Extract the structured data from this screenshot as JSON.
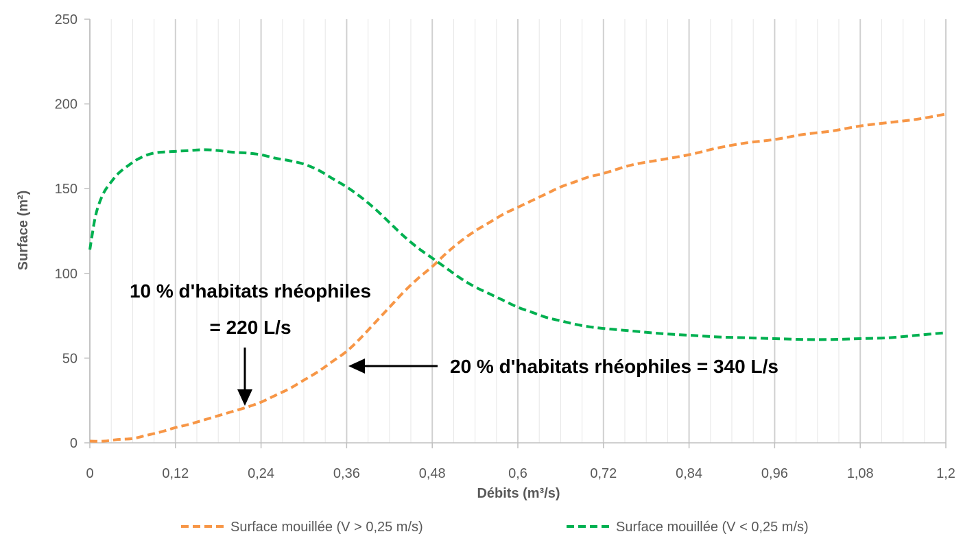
{
  "chart_data": {
    "type": "line",
    "xlabel": "Débits (m³/s)",
    "ylabel": "Surface (m²)",
    "xlim": [
      0,
      1.2
    ],
    "ylim": [
      0,
      250
    ],
    "x_ticks": [
      "0",
      "0,12",
      "0,24",
      "0,36",
      "0,48",
      "0,6",
      "0,72",
      "0,84",
      "0,96",
      "1,08",
      "1,2"
    ],
    "y_ticks": [
      "0",
      "50",
      "100",
      "150",
      "200",
      "250"
    ],
    "grid": "vertical",
    "legend_position": "bottom",
    "series": [
      {
        "name": "Surface mouillée (V > 0,25 m/s)",
        "color": "#F79646",
        "dash": "dashed",
        "points": [
          [
            0,
            1
          ],
          [
            0.02,
            1
          ],
          [
            0.04,
            2
          ],
          [
            0.06,
            2.5
          ],
          [
            0.08,
            4.5
          ],
          [
            0.1,
            6.5
          ],
          [
            0.12,
            9
          ],
          [
            0.14,
            11
          ],
          [
            0.16,
            13.5
          ],
          [
            0.18,
            16
          ],
          [
            0.2,
            18.5
          ],
          [
            0.22,
            21
          ],
          [
            0.24,
            24
          ],
          [
            0.26,
            28
          ],
          [
            0.28,
            32
          ],
          [
            0.3,
            37
          ],
          [
            0.32,
            42
          ],
          [
            0.34,
            48
          ],
          [
            0.36,
            54
          ],
          [
            0.38,
            62
          ],
          [
            0.4,
            71
          ],
          [
            0.42,
            80
          ],
          [
            0.44,
            89
          ],
          [
            0.46,
            97
          ],
          [
            0.48,
            104
          ],
          [
            0.5,
            112
          ],
          [
            0.52,
            119
          ],
          [
            0.54,
            125
          ],
          [
            0.56,
            130
          ],
          [
            0.58,
            135
          ],
          [
            0.6,
            139
          ],
          [
            0.62,
            143
          ],
          [
            0.64,
            147
          ],
          [
            0.66,
            151
          ],
          [
            0.68,
            154
          ],
          [
            0.7,
            157
          ],
          [
            0.72,
            159
          ],
          [
            0.76,
            164
          ],
          [
            0.8,
            167
          ],
          [
            0.84,
            170
          ],
          [
            0.88,
            174
          ],
          [
            0.92,
            177
          ],
          [
            0.96,
            179
          ],
          [
            1.0,
            182
          ],
          [
            1.04,
            184
          ],
          [
            1.08,
            187
          ],
          [
            1.12,
            189
          ],
          [
            1.16,
            191
          ],
          [
            1.2,
            194
          ]
        ]
      },
      {
        "name": "Surface mouillée (V < 0,25 m/s)",
        "color": "#00B050",
        "dash": "dashed",
        "points": [
          [
            0,
            114
          ],
          [
            0.003,
            122
          ],
          [
            0.007,
            132
          ],
          [
            0.012,
            140
          ],
          [
            0.02,
            148
          ],
          [
            0.03,
            154
          ],
          [
            0.04,
            159
          ],
          [
            0.055,
            164
          ],
          [
            0.07,
            168
          ],
          [
            0.09,
            171
          ],
          [
            0.12,
            172
          ],
          [
            0.14,
            172.5
          ],
          [
            0.16,
            173
          ],
          [
            0.18,
            172.5
          ],
          [
            0.2,
            171.5
          ],
          [
            0.22,
            171
          ],
          [
            0.24,
            170
          ],
          [
            0.26,
            168
          ],
          [
            0.28,
            166.5
          ],
          [
            0.3,
            164.5
          ],
          [
            0.32,
            161
          ],
          [
            0.34,
            156
          ],
          [
            0.36,
            151
          ],
          [
            0.38,
            145
          ],
          [
            0.4,
            138
          ],
          [
            0.42,
            130
          ],
          [
            0.44,
            122
          ],
          [
            0.46,
            115
          ],
          [
            0.48,
            109
          ],
          [
            0.5,
            103
          ],
          [
            0.52,
            97
          ],
          [
            0.54,
            92
          ],
          [
            0.56,
            88
          ],
          [
            0.58,
            84
          ],
          [
            0.6,
            80
          ],
          [
            0.62,
            77
          ],
          [
            0.64,
            74
          ],
          [
            0.66,
            72
          ],
          [
            0.68,
            70
          ],
          [
            0.7,
            68.5
          ],
          [
            0.72,
            67.5
          ],
          [
            0.76,
            66
          ],
          [
            0.8,
            64.5
          ],
          [
            0.84,
            63.5
          ],
          [
            0.88,
            62.5
          ],
          [
            0.92,
            62
          ],
          [
            0.96,
            61.5
          ],
          [
            1.0,
            61
          ],
          [
            1.04,
            61
          ],
          [
            1.08,
            61.5
          ],
          [
            1.12,
            62
          ],
          [
            1.16,
            63.5
          ],
          [
            1.2,
            65
          ]
        ]
      }
    ],
    "annotations": [
      {
        "line1": "10 % d'habitats rhéophiles",
        "line2": "= 220 L/s"
      },
      {
        "line1": "20 % d'habitats rhéophiles = 340 L/s"
      }
    ]
  }
}
